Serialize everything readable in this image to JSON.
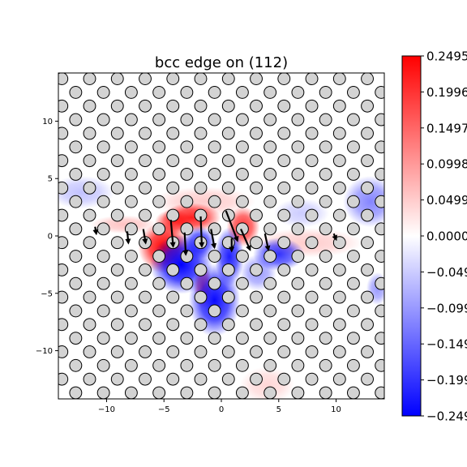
{
  "chart_data": {
    "type": "heatmap",
    "title": "bcc edge on (112)",
    "xlabel": "",
    "ylabel": "",
    "xlim": [
      -14.2,
      14.2
    ],
    "ylim": [
      -14.2,
      14.2
    ],
    "xticks": [
      -10,
      -5,
      0,
      5,
      10
    ],
    "yticks": [
      -10,
      -5,
      0,
      5,
      10
    ],
    "xtick_labels": [
      "−10",
      "−5",
      "0",
      "5",
      "10"
    ],
    "ytick_labels": [
      "−10",
      "−5",
      "0",
      "5",
      "10"
    ],
    "colorbar": {
      "colormap": "bwr",
      "min": -0.2495,
      "max": 0.2495,
      "ticks": [
        0.2495,
        0.1996,
        0.1497,
        0.0998,
        0.0499,
        0.0,
        -0.0499,
        -0.0998,
        -0.1497,
        -0.1996,
        -0.2495
      ],
      "tick_labels": [
        "0.2495",
        "0.1996",
        "0.1497",
        "0.0998",
        "0.0499",
        "0.0000",
        "−0.0499",
        "−0.0998",
        "−0.1497",
        "−0.1996",
        "−0.2495"
      ]
    },
    "colors": {
      "positive": "#ff0000",
      "negative": "#0000ff",
      "atom_fill": "#d3d3d3",
      "atom_edge": "#000000"
    },
    "atom_lattice": {
      "a1": [
        2.42,
        0
      ],
      "a2": [
        1.21,
        1.19
      ],
      "origin": [
        -1.8,
        1.8
      ],
      "marker_diameter": 1.05
    },
    "field_blobs": [
      {
        "x": -5.0,
        "y": -1.0,
        "sx": 1.4,
        "sy": 1.4,
        "value": 0.25
      },
      {
        "x": -2.6,
        "y": 1.6,
        "sx": 1.6,
        "sy": 0.8,
        "value": 0.22
      },
      {
        "x": -4.2,
        "y": 1.2,
        "sx": 1.0,
        "sy": 0.7,
        "value": 0.18
      },
      {
        "x": 1.9,
        "y": 0.8,
        "sx": 0.9,
        "sy": 1.1,
        "value": 0.2
      },
      {
        "x": -1.6,
        "y": -4.4,
        "sx": 0.5,
        "sy": 1.2,
        "value": 0.16
      },
      {
        "x": -8.5,
        "y": 1.0,
        "sx": 1.8,
        "sy": 0.5,
        "value": 0.06
      },
      {
        "x": -1.5,
        "y": 3.0,
        "sx": 2.8,
        "sy": 0.8,
        "value": 0.05
      },
      {
        "x": 7.5,
        "y": -0.6,
        "sx": 3.0,
        "sy": 0.8,
        "value": 0.05
      },
      {
        "x": 4.0,
        "y": -13.0,
        "sx": 1.5,
        "sy": 1.0,
        "value": 0.04
      },
      {
        "x": -3.5,
        "y": -2.5,
        "sx": 1.7,
        "sy": 1.6,
        "value": -0.25
      },
      {
        "x": -0.6,
        "y": -5.6,
        "sx": 1.4,
        "sy": 2.0,
        "value": -0.24
      },
      {
        "x": 0.7,
        "y": -1.8,
        "sx": 0.8,
        "sy": 1.6,
        "value": -0.22
      },
      {
        "x": -1.9,
        "y": -0.6,
        "sx": 0.9,
        "sy": 0.9,
        "value": -0.2
      },
      {
        "x": 5.0,
        "y": -1.6,
        "sx": 1.4,
        "sy": 0.9,
        "value": -0.2
      },
      {
        "x": 13.0,
        "y": 3.0,
        "sx": 1.5,
        "sy": 1.4,
        "value": -0.12
      },
      {
        "x": -12.2,
        "y": 3.8,
        "sx": 1.8,
        "sy": 0.9,
        "value": -0.06
      },
      {
        "x": 3.2,
        "y": -3.2,
        "sx": 1.0,
        "sy": 1.0,
        "value": -0.1
      },
      {
        "x": 7.0,
        "y": 2.0,
        "sx": 1.5,
        "sy": 0.8,
        "value": -0.05
      },
      {
        "x": 13.6,
        "y": -4.6,
        "sx": 0.6,
        "sy": 0.9,
        "value": -0.1
      }
    ],
    "arrows": [
      {
        "x": -1.8,
        "y": 1.7,
        "dx": 0.1,
        "dy": -2.6
      },
      {
        "x": -4.4,
        "y": 1.4,
        "dx": 0.2,
        "dy": -2.3
      },
      {
        "x": -3.2,
        "y": 0.3,
        "dx": 0.1,
        "dy": -1.9
      },
      {
        "x": -6.8,
        "y": 0.6,
        "dx": 0.2,
        "dy": -1.2
      },
      {
        "x": -8.2,
        "y": 0.4,
        "dx": 0.1,
        "dy": -1.0
      },
      {
        "x": -0.9,
        "y": 0.6,
        "dx": 0.3,
        "dy": -1.6
      },
      {
        "x": 0.4,
        "y": 2.2,
        "dx": 1.0,
        "dy": -2.6
      },
      {
        "x": 1.7,
        "y": 0.6,
        "dx": 0.8,
        "dy": -1.8
      },
      {
        "x": 0.9,
        "y": -0.2,
        "dx": 0.0,
        "dy": -1.1
      },
      {
        "x": 3.8,
        "y": 0.2,
        "dx": 0.3,
        "dy": -1.4
      },
      {
        "x": -11.0,
        "y": 0.8,
        "dx": 0.1,
        "dy": -0.6
      },
      {
        "x": 9.8,
        "y": 0.2,
        "dx": 0.2,
        "dy": -0.5
      }
    ]
  }
}
